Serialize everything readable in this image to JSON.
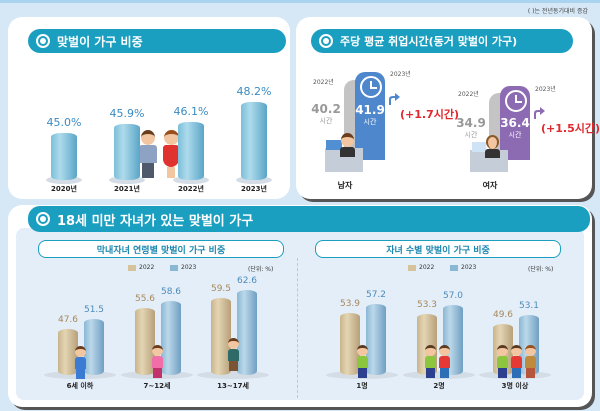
{
  "note": "( )는 전년동기대비 증감",
  "panel1": {
    "title": "맞벌이 가구 비중",
    "icon": "circle-bullet-icon"
  },
  "panel2": {
    "title": "주당 평균 취업시간(동거 맞벌이 가구)",
    "icon": "circle-bullet-icon",
    "male": {
      "label": "남자",
      "y2022_label": "2022년",
      "y2023_label": "2023년",
      "v2022": "40.2",
      "v2023": "41.9",
      "unit": "시간",
      "change": "(+1.7시간)",
      "color": "#4f87cc"
    },
    "female": {
      "label": "여자",
      "y2022_label": "2022년",
      "y2023_label": "2023년",
      "v2022": "34.9",
      "v2023": "36.4",
      "unit": "시간",
      "change": "(+1.5시간)",
      "color": "#8d6bb3"
    }
  },
  "panel3": {
    "title": "18세 미만 자녀가 있는 맞벌이 가구",
    "icon": "circle-bullet-icon",
    "left": {
      "title": "막내자녀 연령별 맞벌이 가구 비중",
      "legend": [
        "2022",
        "2023"
      ],
      "unit": "(단위: %)"
    },
    "right": {
      "title": "자녀 수별 맞벌이 가구 비중",
      "legend": [
        "2022",
        "2023"
      ],
      "unit": "(단위: %)"
    }
  },
  "colors": {
    "accent": "#1b9fc1",
    "bar_blue": "#7bbfd9",
    "bar_tan": "#d6c39c",
    "increase_red": "#e0282e",
    "background": "#d6e7f5"
  },
  "chart_data": [
    {
      "type": "bar",
      "title": "맞벌이 가구 비중",
      "categories": [
        "2020년",
        "2021년",
        "2022년",
        "2023년"
      ],
      "values": [
        45.0,
        45.9,
        46.1,
        48.2
      ],
      "labels": [
        "45.0%",
        "45.9%",
        "46.1%",
        "48.2%"
      ],
      "xlabel": "",
      "ylabel": "%",
      "grid": false
    },
    {
      "type": "bar",
      "title": "주당 평균 취업시간(동거 맞벌이 가구)",
      "categories": [
        "남자",
        "여자"
      ],
      "series": [
        {
          "name": "2022년",
          "values": [
            40.2,
            34.9
          ]
        },
        {
          "name": "2023년",
          "values": [
            41.9,
            36.4
          ]
        }
      ],
      "annotations": [
        "(+1.7시간)",
        "(+1.5시간)"
      ],
      "ylabel": "시간"
    },
    {
      "type": "bar",
      "title": "막내자녀 연령별 맞벌이 가구 비중",
      "categories": [
        "6세 이하",
        "7~12세",
        "13~17세"
      ],
      "series": [
        {
          "name": "2022",
          "values": [
            47.6,
            55.6,
            59.5
          ]
        },
        {
          "name": "2023",
          "values": [
            51.5,
            58.6,
            62.6
          ]
        }
      ],
      "unit": "(단위: %)",
      "legend_position": "top"
    },
    {
      "type": "bar",
      "title": "자녀 수별 맞벌이 가구 비중",
      "categories": [
        "1명",
        "2명",
        "3명 이상"
      ],
      "series": [
        {
          "name": "2022",
          "values": [
            53.9,
            53.3,
            49.6
          ]
        },
        {
          "name": "2023",
          "values": [
            57.2,
            57.0,
            53.1
          ]
        }
      ],
      "unit": "(단위: %)",
      "legend_position": "top"
    }
  ]
}
